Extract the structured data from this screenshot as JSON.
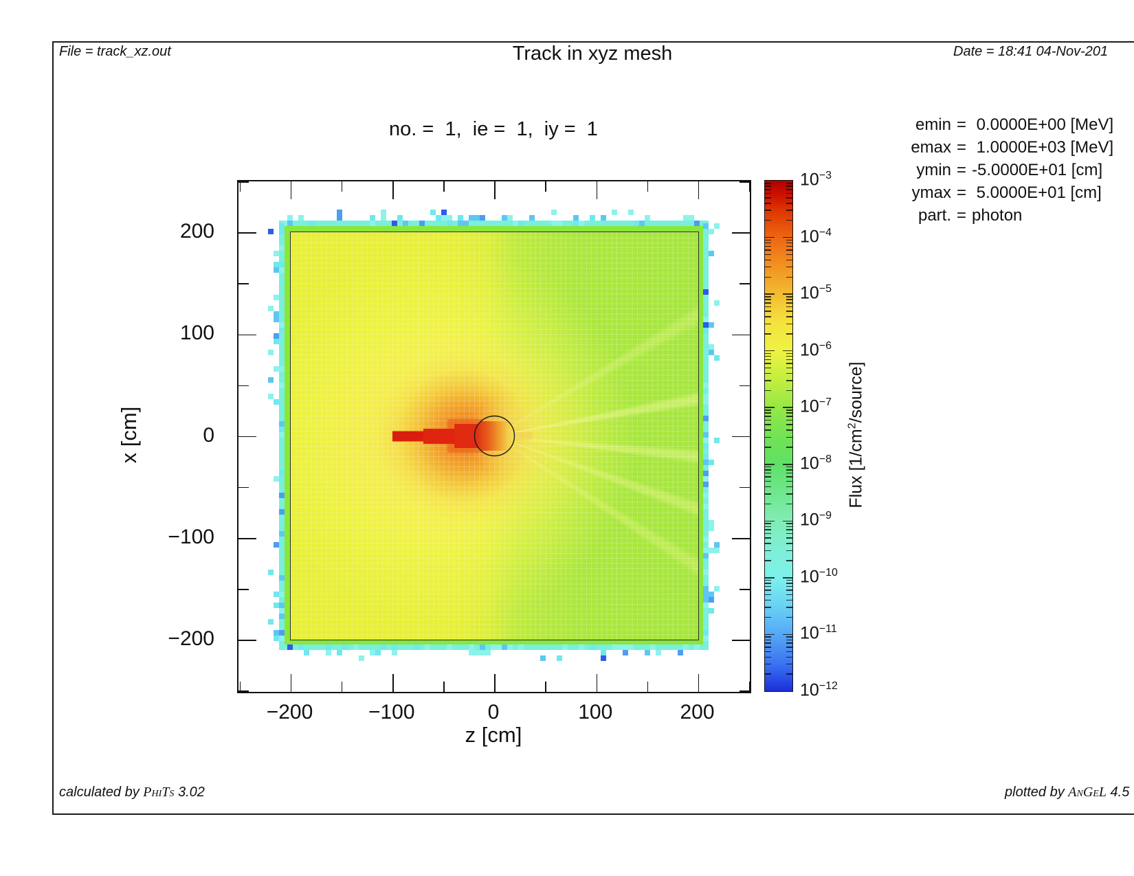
{
  "header": {
    "file": "File = track_xz.out",
    "title": "Track in xyz mesh",
    "date": "Date = 18:41 04-Nov-201"
  },
  "footer": {
    "calc_prefix": "calculated by ",
    "calc_brand": "PhiTs",
    "calc_suffix": " 3.02",
    "plot_prefix": "plotted by ",
    "plot_brand": "AnGeL",
    "plot_suffix": " 4.5"
  },
  "plot": {
    "subtitle": "no. =  1,  ie =  1,  iy =  1",
    "x_axis": {
      "title": "z [cm]",
      "tick_labels": [
        "−200",
        "−100",
        "0",
        "100",
        "200"
      ]
    },
    "y_axis": {
      "title": "x [cm]",
      "tick_labels": [
        "200",
        "100",
        "0",
        "−100",
        "−200"
      ]
    }
  },
  "colorbar": {
    "label_prefix": "Flux [1/cm",
    "label_sup": "2",
    "label_suffix": "/source]",
    "base": "10",
    "exponents": [
      "−3",
      "−4",
      "−5",
      "−6",
      "−7",
      "−8",
      "−9",
      "−10",
      "−11",
      "−12"
    ]
  },
  "params": {
    "rows": [
      {
        "key": "emin",
        "eq": "=",
        "value": " 0.0000E+00 [MeV]"
      },
      {
        "key": "emax",
        "eq": "=",
        "value": " 1.0000E+03 [MeV]"
      },
      {
        "key": "ymin",
        "eq": "=",
        "value": "-5.0000E+01 [cm]"
      },
      {
        "key": "ymax",
        "eq": "=",
        "value": " 5.0000E+01 [cm]"
      },
      {
        "key": "part.",
        "eq": "=",
        "value": "photon"
      }
    ]
  },
  "chart_data": {
    "type": "heatmap",
    "title": "Track in xyz mesh",
    "subtitle": "no. = 1, ie = 1, iy = 1",
    "xlabel": "z [cm]",
    "ylabel": "x [cm]",
    "xlim": [
      -252,
      252
    ],
    "ylim": [
      -252,
      252
    ],
    "x_ticks": [
      -200,
      -100,
      0,
      100,
      200
    ],
    "y_ticks": [
      -200,
      -100,
      0,
      100,
      200
    ],
    "minor_tick_step_cm": 50,
    "grid": false,
    "mesh": {
      "extent_cm": [
        -210,
        210
      ],
      "cell_size_cm": 5
    },
    "colorbar": {
      "label": "Flux [1/cm2/source]",
      "scale": "log10",
      "max": 0.001,
      "min": 1e-12,
      "decades": [
        -3,
        -4,
        -5,
        -6,
        -7,
        -8,
        -9,
        -10,
        -11,
        -12
      ],
      "position": "right"
    },
    "features": [
      {
        "name": "beam-track",
        "shape": "horizontal bar",
        "z_cm": [
          -100,
          -15
        ],
        "x_cm": [
          -6,
          6
        ],
        "flux": "~1e-3 (saturated red), widening toward origin"
      },
      {
        "name": "target-circle",
        "shape": "circle outline",
        "center_cm": [
          0,
          0
        ],
        "radius_cm": 20,
        "interior": "red-to-yellow gradient left to right"
      },
      {
        "name": "orange-halo",
        "shape": "diffuse ellipse",
        "center_cm": [
          -30,
          0
        ],
        "radius_cm": 80,
        "flux": "~1e-4"
      },
      {
        "name": "yellow-region",
        "extent": "left half (z < 0)",
        "flux": "~1e-5 to 1e-6"
      },
      {
        "name": "green-region",
        "extent": "right half (z > 0)",
        "flux": "~1e-7, with faint lighter radial streaks from origin"
      },
      {
        "name": "boundary-fringe",
        "extent": "ring at |z|,|x| = 200..210 cm",
        "flux": "green->cyan ~1e-8..1e-10 with scattered blue cells ~1e-11..1e-12"
      }
    ]
  }
}
